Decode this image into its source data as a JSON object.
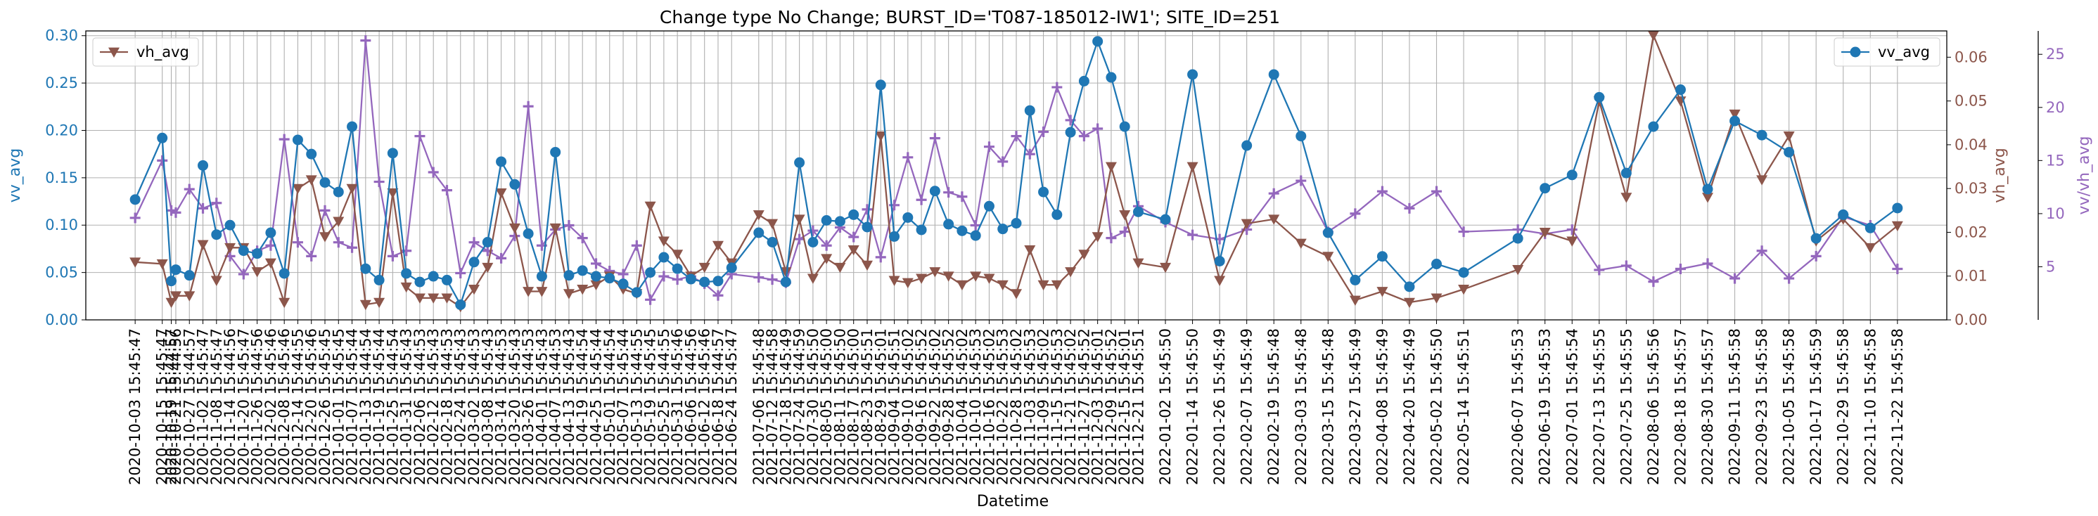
{
  "chart_data": {
    "type": "line",
    "title": "Change type No Change; BURST_ID='T087-185012-IW1'; SITE_ID=251",
    "xlabel": "Datetime",
    "grid": true,
    "x": [
      "2020-10-03 15:45:47",
      "2020-10-15 15:45:47",
      "2020-10-19 15:44:57",
      "2020-10-21 15:44:56",
      "2020-10-27 15:44:57",
      "2020-11-02 15:45:47",
      "2020-11-08 15:45:47",
      "2020-11-14 15:44:56",
      "2020-11-20 15:45:47",
      "2020-11-26 15:44:56",
      "2020-12-02 15:45:46",
      "2020-12-08 15:45:46",
      "2020-12-14 15:44:55",
      "2020-12-20 15:45:46",
      "2020-12-26 15:45:45",
      "2021-01-01 15:45:45",
      "2021-01-07 15:45:44",
      "2021-01-13 15:44:54",
      "2021-01-19 15:45:44",
      "2021-01-25 15:44:54",
      "2021-01-31 15:45:43",
      "2021-02-06 15:44:53",
      "2021-02-12 15:45:43",
      "2021-02-18 15:44:53",
      "2021-02-24 15:45:43",
      "2021-03-02 15:44:53",
      "2021-03-08 15:45:43",
      "2021-03-14 15:44:53",
      "2021-03-20 15:45:43",
      "2021-03-26 15:44:53",
      "2021-04-01 15:45:43",
      "2021-04-07 15:44:53",
      "2021-04-13 15:45:43",
      "2021-04-19 15:44:54",
      "2021-04-25 15:45:44",
      "2021-05-01 15:44:54",
      "2021-05-07 15:45:44",
      "2021-05-13 15:44:55",
      "2021-05-19 15:45:45",
      "2021-05-25 15:44:55",
      "2021-05-31 15:45:46",
      "2021-06-06 15:44:56",
      "2021-06-12 15:45:46",
      "2021-06-18 15:44:57",
      "2021-06-24 15:45:47",
      "2021-07-06 15:45:48",
      "2021-07-12 15:44:58",
      "2021-07-18 15:45:49",
      "2021-07-24 15:44:59",
      "2021-07-30 15:45:50",
      "2021-08-05 15:45:00",
      "2021-08-11 15:45:50",
      "2021-08-17 15:45:00",
      "2021-08-23 15:45:51",
      "2021-08-29 15:45:01",
      "2021-09-04 15:45:51",
      "2021-09-10 15:45:02",
      "2021-09-16 15:45:52",
      "2021-09-22 15:45:02",
      "2021-09-28 15:45:52",
      "2021-10-04 15:45:02",
      "2021-10-10 15:45:53",
      "2021-10-16 15:45:02",
      "2021-10-22 15:45:53",
      "2021-10-28 15:45:02",
      "2021-11-03 15:45:53",
      "2021-11-09 15:45:02",
      "2021-11-15 15:45:53",
      "2021-11-21 15:45:02",
      "2021-11-27 15:45:52",
      "2021-12-03 15:45:01",
      "2021-12-09 15:45:52",
      "2021-12-15 15:45:01",
      "2021-12-21 15:45:51",
      "2022-01-02 15:45:50",
      "2022-01-14 15:45:50",
      "2022-01-26 15:45:49",
      "2022-02-07 15:45:49",
      "2022-02-19 15:45:48",
      "2022-03-03 15:45:48",
      "2022-03-15 15:45:48",
      "2022-03-27 15:45:49",
      "2022-04-08 15:45:49",
      "2022-04-20 15:45:49",
      "2022-05-02 15:45:50",
      "2022-05-14 15:45:51",
      "2022-06-07 15:45:53",
      "2022-06-19 15:45:53",
      "2022-07-01 15:45:54",
      "2022-07-13 15:45:55",
      "2022-07-25 15:45:55",
      "2022-08-06 15:45:56",
      "2022-08-18 15:45:57",
      "2022-08-30 15:45:57",
      "2022-09-11 15:45:58",
      "2022-09-23 15:45:58",
      "2022-10-05 15:45:58",
      "2022-10-17 15:45:59",
      "2022-10-29 15:45:58",
      "2022-11-10 15:45:58",
      "2022-11-22 15:45:58"
    ],
    "x_tick_labels": [
      "2020-10-03 15:45:47",
      "2020-10-15 15:45:47",
      "2020-10-19 15:44:57",
      "2020-10-21 15:44:56",
      "2020-10-27 15:44:57",
      "2020-11-02 15:45:47",
      "2020-11-08 15:45:47",
      "2020-11-14 15:44:56",
      "2020-11-20 15:45:47",
      "2020-11-26 15:44:56",
      "2020-12-02 15:45:46",
      "2020-12-08 15:45:46",
      "2020-12-14 15:44:55",
      "2020-12-20 15:45:46",
      "2020-12-26 15:45:45",
      "2021-01-01 15:45:45",
      "2021-01-07 15:45:44",
      "2021-01-13 15:44:54",
      "2021-01-19 15:45:44",
      "2021-01-25 15:44:54",
      "2021-01-31 15:45:43",
      "2021-02-06 15:44:53",
      "2021-02-12 15:45:43",
      "2021-02-18 15:44:53",
      "2021-02-24 15:45:43",
      "2021-03-02 15:44:53",
      "2021-03-08 15:45:43",
      "2021-03-14 15:44:53",
      "2021-03-20 15:45:43",
      "2021-03-26 15:44:53",
      "2021-04-01 15:45:43",
      "2021-04-07 15:44:53",
      "2021-04-13 15:45:43",
      "2021-04-19 15:44:54",
      "2021-04-25 15:45:44",
      "2021-05-01 15:44:54",
      "2021-05-07 15:45:44",
      "2021-05-13 15:44:55",
      "2021-05-19 15:45:45",
      "2021-05-25 15:44:55",
      "2021-05-31 15:45:46",
      "2021-06-06 15:44:56",
      "2021-06-12 15:45:46",
      "2021-06-18 15:44:57",
      "2021-06-24 15:45:47",
      "2021-07-06 15:45:48",
      "2021-07-12 15:44:58",
      "2021-07-18 15:45:49",
      "2021-07-24 15:44:59",
      "2021-07-30 15:45:50",
      "2021-08-05 15:45:00",
      "2021-08-11 15:45:50",
      "2021-08-17 15:45:00",
      "2021-08-23 15:45:51",
      "2021-08-29 15:45:01",
      "2021-09-04 15:45:51",
      "2021-09-10 15:45:02",
      "2021-09-16 15:45:52",
      "2021-09-22 15:45:02",
      "2021-09-28 15:45:52",
      "2021-10-04 15:45:02",
      "2021-10-10 15:45:53",
      "2021-10-16 15:45:02",
      "2021-10-22 15:45:53",
      "2021-10-28 15:45:02",
      "2021-11-03 15:45:53",
      "2021-11-09 15:45:02",
      "2021-11-15 15:45:53",
      "2021-11-21 15:45:02",
      "2021-11-27 15:45:52",
      "2021-12-03 15:45:01",
      "2021-12-09 15:45:52",
      "2021-12-15 15:45:01",
      "2021-12-21 15:45:51",
      "2022-01-02 15:45:50",
      "2022-01-14 15:45:50",
      "2022-01-26 15:45:49",
      "2022-02-07 15:45:49",
      "2022-02-19 15:45:48",
      "2022-03-03 15:45:48",
      "2022-03-15 15:45:48",
      "2022-03-27 15:45:49",
      "2022-04-08 15:45:49",
      "2022-04-20 15:45:49",
      "2022-05-02 15:45:50",
      "2022-05-14 15:45:51",
      "2022-06-07 15:45:53",
      "2022-06-19 15:45:53",
      "2022-07-01 15:45:54",
      "2022-07-13 15:45:55",
      "2022-07-25 15:45:55",
      "2022-08-06 15:45:56",
      "2022-08-18 15:45:57",
      "2022-08-30 15:45:57",
      "2022-09-11 15:45:58",
      "2022-09-23 15:45:58",
      "2022-10-05 15:45:58",
      "2022-10-17 15:45:59",
      "2022-10-29 15:45:58",
      "2022-11-10 15:45:58",
      "2022-11-22 15:45:58"
    ],
    "axes": [
      {
        "name": "vv_avg",
        "ylabel": "vv_avg",
        "side": "left",
        "ylim": [
          0,
          0.305
        ],
        "ticks": [
          0.0,
          0.05,
          0.1,
          0.15,
          0.2,
          0.25,
          0.3
        ],
        "tick_labels": [
          "0.00",
          "0.05",
          "0.10",
          "0.15",
          "0.20",
          "0.25",
          "0.30"
        ],
        "color": "#1f77b4"
      },
      {
        "name": "vh_avg",
        "ylabel": "vh_avg",
        "side": "right",
        "ylim": [
          0,
          0.066
        ],
        "ticks": [
          0.0,
          0.01,
          0.02,
          0.03,
          0.04,
          0.05,
          0.06
        ],
        "tick_labels": [
          "0.00",
          "0.01",
          "0.02",
          "0.03",
          "0.04",
          "0.05",
          "0.06"
        ],
        "color": "#8c564b"
      },
      {
        "name": "vv/vh_avg",
        "ylabel": "vv/vh_avg",
        "side": "right-outer",
        "ylim": [
          0,
          27.2
        ],
        "ticks": [
          5,
          10,
          15,
          20,
          25
        ],
        "tick_labels": [
          "5",
          "10",
          "15",
          "20",
          "25"
        ],
        "color": "#9467bd"
      }
    ],
    "series": [
      {
        "name": "vv_avg",
        "axis": "vv_avg",
        "color": "#1f77b4",
        "marker": "circle",
        "values": [
          0.127,
          0.192,
          0.041,
          0.053,
          0.047,
          0.163,
          0.09,
          0.1,
          0.073,
          0.07,
          0.092,
          0.049,
          0.19,
          0.175,
          0.145,
          0.135,
          0.204,
          0.054,
          0.042,
          0.176,
          0.049,
          0.04,
          0.046,
          0.042,
          0.016,
          0.061,
          0.082,
          0.167,
          0.143,
          0.091,
          0.046,
          0.177,
          0.047,
          0.052,
          0.046,
          0.044,
          0.038,
          0.029,
          0.05,
          0.066,
          0.054,
          0.043,
          0.04,
          0.041,
          0.055,
          0.092,
          0.082,
          0.04,
          0.166,
          0.082,
          0.105,
          0.104,
          0.111,
          0.098,
          0.248,
          0.088,
          0.108,
          0.095,
          0.136,
          0.101,
          0.094,
          0.089,
          0.12,
          0.096,
          0.102,
          0.221,
          0.135,
          0.111,
          0.198,
          0.252,
          0.294,
          0.256,
          0.204,
          0.114,
          0.106,
          0.259,
          0.062,
          0.184,
          0.259,
          0.194,
          0.092,
          0.042,
          0.067,
          0.035,
          0.059,
          0.05,
          0.086,
          0.139,
          0.153,
          0.235,
          0.155,
          0.204,
          0.243,
          0.138,
          0.21,
          0.195,
          0.177,
          0.086,
          0.111,
          0.097,
          0.118
        ]
      },
      {
        "name": "vh_avg",
        "axis": "vh_avg",
        "color": "#8c564b",
        "marker": "triangle-down",
        "values": [
          0.0132,
          0.0128,
          0.004,
          0.0055,
          0.0055,
          0.0172,
          0.009,
          0.0165,
          0.0165,
          0.011,
          0.013,
          0.004,
          0.03,
          0.032,
          0.019,
          0.0225,
          0.03,
          0.0035,
          0.004,
          0.029,
          0.0075,
          0.005,
          0.005,
          0.005,
          0.003,
          0.007,
          0.012,
          0.029,
          0.021,
          0.0065,
          0.0065,
          0.021,
          0.006,
          0.007,
          0.008,
          0.01,
          0.007,
          0.006,
          0.026,
          0.018,
          0.015,
          0.01,
          0.012,
          0.017,
          0.013,
          0.024,
          0.022,
          0.011,
          0.023,
          0.0095,
          0.014,
          0.012,
          0.016,
          0.0125,
          0.042,
          0.009,
          0.0085,
          0.0095,
          0.011,
          0.01,
          0.008,
          0.01,
          0.0095,
          0.008,
          0.006,
          0.016,
          0.008,
          0.008,
          0.011,
          0.015,
          0.019,
          0.035,
          0.024,
          0.013,
          0.012,
          0.035,
          0.009,
          0.022,
          0.023,
          0.0175,
          0.0145,
          0.0045,
          0.0065,
          0.004,
          0.005,
          0.007,
          0.0115,
          0.02,
          0.018,
          0.05,
          0.028,
          0.065,
          0.05,
          0.028,
          0.047,
          0.032,
          0.042,
          0.018,
          0.023,
          0.0165,
          0.0215
        ]
      },
      {
        "name": "vv/vh_avg",
        "axis": "vv/vh_avg",
        "color": "#9467bd",
        "marker": "plus",
        "values": [
          9.6,
          15.0,
          10.3,
          10.1,
          12.3,
          10.5,
          11.0,
          6.0,
          4.3,
          6.5,
          7.0,
          17.0,
          7.3,
          6.0,
          10.3,
          7.3,
          6.8,
          26.3,
          13.0,
          6.0,
          6.5,
          17.3,
          13.9,
          12.2,
          4.4,
          7.3,
          6.5,
          5.8,
          7.9,
          20.1,
          7.0,
          8.5,
          8.9,
          7.7,
          5.3,
          4.6,
          4.3,
          7.0,
          1.9,
          4.1,
          3.8,
          4.1,
          3.4,
          2.3,
          4.3,
          4.0,
          3.8,
          3.5,
          7.6,
          8.4,
          7.0,
          8.7,
          7.8,
          10.4,
          5.9,
          10.8,
          15.3,
          11.3,
          17.1,
          12.0,
          11.6,
          8.9,
          16.3,
          14.9,
          17.3,
          15.6,
          17.7,
          21.9,
          18.8,
          17.3,
          18.0,
          7.7,
          8.3,
          10.7,
          9.2,
          8.0,
          7.6,
          8.5,
          11.9,
          13.1,
          8.3,
          10.0,
          12.1,
          10.5,
          12.1,
          8.3,
          8.5,
          8.1,
          8.5,
          4.7,
          5.1,
          3.6,
          4.8,
          5.3,
          3.9,
          6.5,
          3.9,
          6.0,
          9.7,
          8.9,
          4.8
        ]
      }
    ],
    "legends": [
      {
        "entries": [
          "vh_avg"
        ],
        "placement": "top-left"
      },
      {
        "entries": [
          "vv_avg"
        ],
        "placement": "top-right"
      }
    ]
  }
}
